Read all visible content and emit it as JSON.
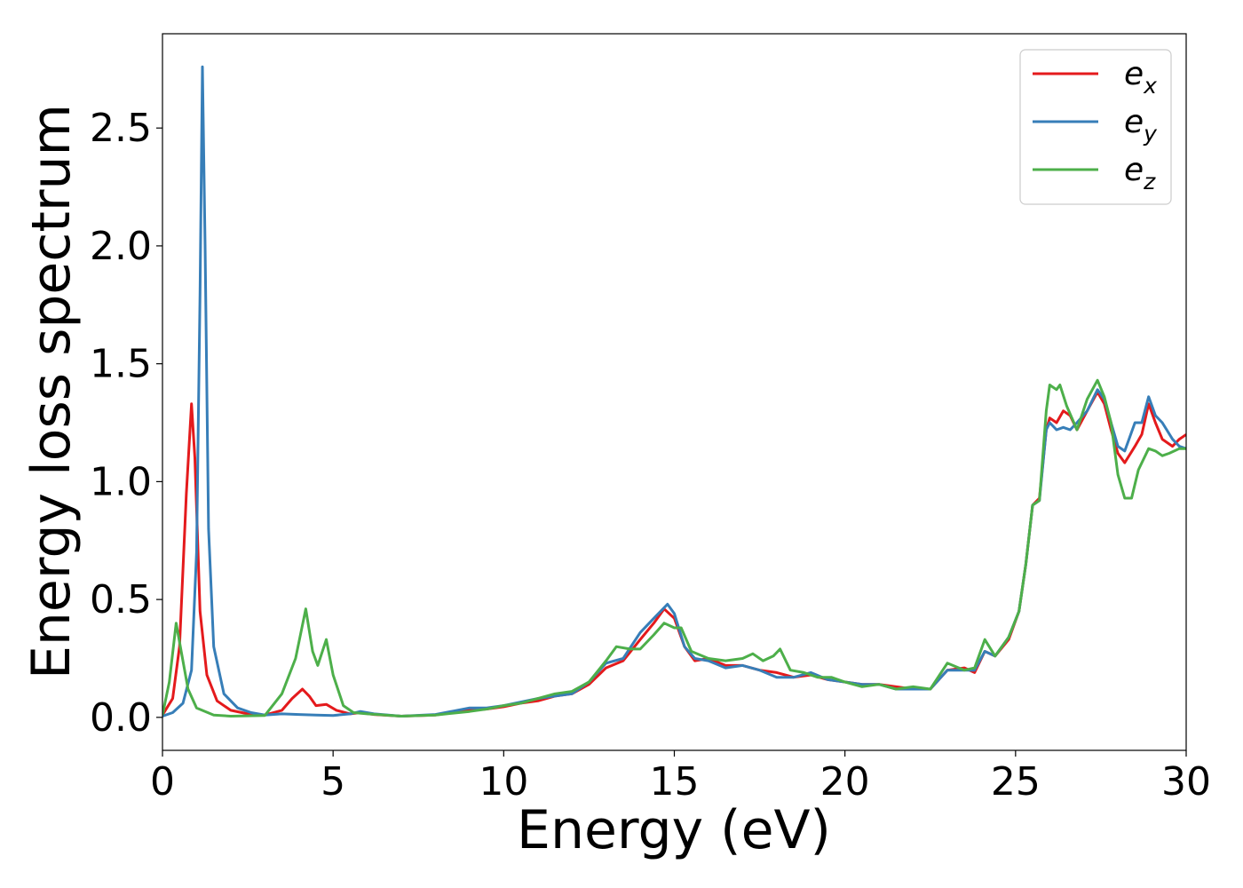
{
  "chart_data": {
    "type": "line",
    "xlabel": "Energy (eV)",
    "ylabel": "Energy loss spectrum",
    "xlim": [
      0,
      30
    ],
    "ylim": [
      -0.14,
      2.9
    ],
    "xticks": [
      0,
      5,
      10,
      15,
      20,
      25,
      30
    ],
    "xtick_labels": [
      "0",
      "5",
      "10",
      "15",
      "20",
      "25",
      "30"
    ],
    "yticks": [
      0.0,
      0.5,
      1.0,
      1.5,
      2.0,
      2.5
    ],
    "ytick_labels": [
      "0.0",
      "0.5",
      "1.0",
      "1.5",
      "2.0",
      "2.5"
    ],
    "grid": false,
    "legend_position": "top-right",
    "series": [
      {
        "name": "e",
        "subscript": "x",
        "color": "#e41a1c",
        "points": [
          [
            0,
            0.01
          ],
          [
            0.3,
            0.08
          ],
          [
            0.5,
            0.3
          ],
          [
            0.7,
            0.95
          ],
          [
            0.85,
            1.33
          ],
          [
            0.95,
            1.1
          ],
          [
            1.1,
            0.45
          ],
          [
            1.3,
            0.18
          ],
          [
            1.6,
            0.07
          ],
          [
            2.0,
            0.03
          ],
          [
            2.5,
            0.015
          ],
          [
            3.0,
            0.01
          ],
          [
            3.5,
            0.03
          ],
          [
            3.8,
            0.08
          ],
          [
            4.1,
            0.12
          ],
          [
            4.3,
            0.09
          ],
          [
            4.5,
            0.05
          ],
          [
            4.8,
            0.055
          ],
          [
            5.1,
            0.03
          ],
          [
            5.5,
            0.015
          ],
          [
            5.8,
            0.02
          ],
          [
            6.2,
            0.012
          ],
          [
            7.0,
            0.005
          ],
          [
            8.0,
            0.01
          ],
          [
            9.0,
            0.03
          ],
          [
            9.5,
            0.035
          ],
          [
            10.0,
            0.045
          ],
          [
            10.5,
            0.06
          ],
          [
            11.0,
            0.07
          ],
          [
            11.5,
            0.09
          ],
          [
            12.0,
            0.1
          ],
          [
            12.5,
            0.14
          ],
          [
            13.0,
            0.21
          ],
          [
            13.5,
            0.24
          ],
          [
            14.0,
            0.33
          ],
          [
            14.4,
            0.4
          ],
          [
            14.7,
            0.46
          ],
          [
            15.0,
            0.42
          ],
          [
            15.3,
            0.3
          ],
          [
            15.6,
            0.24
          ],
          [
            16.0,
            0.25
          ],
          [
            16.5,
            0.22
          ],
          [
            17.0,
            0.22
          ],
          [
            17.5,
            0.2
          ],
          [
            18.0,
            0.19
          ],
          [
            18.5,
            0.17
          ],
          [
            19.0,
            0.18
          ],
          [
            19.5,
            0.16
          ],
          [
            20.0,
            0.15
          ],
          [
            20.5,
            0.14
          ],
          [
            21.0,
            0.14
          ],
          [
            21.5,
            0.13
          ],
          [
            22.0,
            0.12
          ],
          [
            22.5,
            0.12
          ],
          [
            23.0,
            0.2
          ],
          [
            23.5,
            0.21
          ],
          [
            23.8,
            0.19
          ],
          [
            24.1,
            0.28
          ],
          [
            24.4,
            0.26
          ],
          [
            24.8,
            0.33
          ],
          [
            25.1,
            0.45
          ],
          [
            25.3,
            0.65
          ],
          [
            25.5,
            0.9
          ],
          [
            25.7,
            0.93
          ],
          [
            25.9,
            1.22
          ],
          [
            26.0,
            1.27
          ],
          [
            26.2,
            1.25
          ],
          [
            26.4,
            1.3
          ],
          [
            26.6,
            1.28
          ],
          [
            26.8,
            1.22
          ],
          [
            27.1,
            1.3
          ],
          [
            27.4,
            1.38
          ],
          [
            27.6,
            1.33
          ],
          [
            27.8,
            1.22
          ],
          [
            28.0,
            1.12
          ],
          [
            28.2,
            1.08
          ],
          [
            28.5,
            1.15
          ],
          [
            28.7,
            1.2
          ],
          [
            28.9,
            1.33
          ],
          [
            29.1,
            1.25
          ],
          [
            29.3,
            1.18
          ],
          [
            29.6,
            1.15
          ],
          [
            29.8,
            1.18
          ],
          [
            30.0,
            1.2
          ]
        ]
      },
      {
        "name": "e",
        "subscript": "y",
        "color": "#377eb8",
        "points": [
          [
            0,
            0.005
          ],
          [
            0.3,
            0.02
          ],
          [
            0.6,
            0.06
          ],
          [
            0.85,
            0.2
          ],
          [
            1.0,
            0.7
          ],
          [
            1.1,
            1.8
          ],
          [
            1.17,
            2.76
          ],
          [
            1.25,
            2.0
          ],
          [
            1.35,
            0.8
          ],
          [
            1.5,
            0.3
          ],
          [
            1.8,
            0.1
          ],
          [
            2.2,
            0.04
          ],
          [
            2.6,
            0.02
          ],
          [
            3.0,
            0.01
          ],
          [
            3.5,
            0.015
          ],
          [
            4.0,
            0.012
          ],
          [
            4.5,
            0.01
          ],
          [
            5.0,
            0.008
          ],
          [
            5.5,
            0.015
          ],
          [
            5.8,
            0.025
          ],
          [
            6.2,
            0.015
          ],
          [
            7.0,
            0.005
          ],
          [
            8.0,
            0.012
          ],
          [
            9.0,
            0.04
          ],
          [
            9.5,
            0.04
          ],
          [
            10.0,
            0.05
          ],
          [
            10.5,
            0.065
          ],
          [
            11.0,
            0.08
          ],
          [
            11.5,
            0.09
          ],
          [
            12.0,
            0.1
          ],
          [
            12.5,
            0.15
          ],
          [
            13.0,
            0.23
          ],
          [
            13.5,
            0.25
          ],
          [
            14.0,
            0.36
          ],
          [
            14.4,
            0.42
          ],
          [
            14.8,
            0.48
          ],
          [
            15.0,
            0.44
          ],
          [
            15.3,
            0.3
          ],
          [
            15.6,
            0.25
          ],
          [
            16.0,
            0.24
          ],
          [
            16.5,
            0.21
          ],
          [
            17.0,
            0.22
          ],
          [
            17.5,
            0.2
          ],
          [
            18.0,
            0.17
          ],
          [
            18.5,
            0.17
          ],
          [
            19.0,
            0.19
          ],
          [
            19.5,
            0.16
          ],
          [
            20.0,
            0.15
          ],
          [
            20.5,
            0.14
          ],
          [
            21.0,
            0.14
          ],
          [
            21.5,
            0.12
          ],
          [
            22.0,
            0.12
          ],
          [
            22.5,
            0.12
          ],
          [
            23.0,
            0.2
          ],
          [
            23.5,
            0.2
          ],
          [
            23.8,
            0.2
          ],
          [
            24.1,
            0.28
          ],
          [
            24.4,
            0.26
          ],
          [
            24.8,
            0.34
          ],
          [
            25.1,
            0.45
          ],
          [
            25.3,
            0.65
          ],
          [
            25.5,
            0.9
          ],
          [
            25.7,
            0.92
          ],
          [
            25.9,
            1.22
          ],
          [
            26.0,
            1.25
          ],
          [
            26.2,
            1.22
          ],
          [
            26.4,
            1.23
          ],
          [
            26.6,
            1.22
          ],
          [
            26.8,
            1.25
          ],
          [
            27.1,
            1.3
          ],
          [
            27.4,
            1.39
          ],
          [
            27.6,
            1.35
          ],
          [
            27.8,
            1.25
          ],
          [
            28.0,
            1.15
          ],
          [
            28.2,
            1.13
          ],
          [
            28.5,
            1.25
          ],
          [
            28.7,
            1.25
          ],
          [
            28.9,
            1.36
          ],
          [
            29.1,
            1.28
          ],
          [
            29.3,
            1.25
          ],
          [
            29.6,
            1.18
          ],
          [
            29.8,
            1.15
          ],
          [
            30.0,
            1.14
          ]
        ]
      },
      {
        "name": "e",
        "subscript": "z",
        "color": "#4daf4a",
        "points": [
          [
            0,
            0.01
          ],
          [
            0.2,
            0.15
          ],
          [
            0.4,
            0.4
          ],
          [
            0.55,
            0.28
          ],
          [
            0.75,
            0.12
          ],
          [
            1.0,
            0.04
          ],
          [
            1.5,
            0.01
          ],
          [
            2.0,
            0.005
          ],
          [
            3.0,
            0.008
          ],
          [
            3.5,
            0.1
          ],
          [
            3.9,
            0.25
          ],
          [
            4.2,
            0.46
          ],
          [
            4.4,
            0.28
          ],
          [
            4.55,
            0.22
          ],
          [
            4.8,
            0.33
          ],
          [
            5.0,
            0.18
          ],
          [
            5.3,
            0.05
          ],
          [
            5.6,
            0.02
          ],
          [
            6.0,
            0.015
          ],
          [
            7.0,
            0.005
          ],
          [
            8.0,
            0.01
          ],
          [
            9.0,
            0.025
          ],
          [
            9.5,
            0.035
          ],
          [
            10.0,
            0.05
          ],
          [
            10.5,
            0.06
          ],
          [
            11.0,
            0.08
          ],
          [
            11.5,
            0.1
          ],
          [
            12.0,
            0.11
          ],
          [
            12.5,
            0.15
          ],
          [
            13.0,
            0.24
          ],
          [
            13.3,
            0.3
          ],
          [
            13.7,
            0.29
          ],
          [
            14.0,
            0.29
          ],
          [
            14.4,
            0.35
          ],
          [
            14.7,
            0.4
          ],
          [
            15.0,
            0.38
          ],
          [
            15.2,
            0.38
          ],
          [
            15.5,
            0.28
          ],
          [
            16.0,
            0.25
          ],
          [
            16.5,
            0.24
          ],
          [
            17.0,
            0.25
          ],
          [
            17.3,
            0.27
          ],
          [
            17.6,
            0.24
          ],
          [
            17.9,
            0.26
          ],
          [
            18.1,
            0.29
          ],
          [
            18.4,
            0.2
          ],
          [
            18.8,
            0.19
          ],
          [
            19.2,
            0.17
          ],
          [
            19.6,
            0.17
          ],
          [
            20.0,
            0.15
          ],
          [
            20.5,
            0.13
          ],
          [
            21.0,
            0.14
          ],
          [
            21.5,
            0.12
          ],
          [
            22.0,
            0.13
          ],
          [
            22.5,
            0.12
          ],
          [
            23.0,
            0.23
          ],
          [
            23.5,
            0.2
          ],
          [
            23.8,
            0.21
          ],
          [
            24.1,
            0.33
          ],
          [
            24.4,
            0.26
          ],
          [
            24.8,
            0.34
          ],
          [
            25.1,
            0.45
          ],
          [
            25.3,
            0.65
          ],
          [
            25.5,
            0.9
          ],
          [
            25.7,
            0.92
          ],
          [
            25.9,
            1.3
          ],
          [
            26.0,
            1.41
          ],
          [
            26.2,
            1.39
          ],
          [
            26.3,
            1.41
          ],
          [
            26.5,
            1.32
          ],
          [
            26.8,
            1.22
          ],
          [
            27.1,
            1.35
          ],
          [
            27.4,
            1.43
          ],
          [
            27.6,
            1.36
          ],
          [
            27.8,
            1.25
          ],
          [
            28.0,
            1.03
          ],
          [
            28.2,
            0.93
          ],
          [
            28.4,
            0.93
          ],
          [
            28.6,
            1.05
          ],
          [
            28.9,
            1.14
          ],
          [
            29.1,
            1.13
          ],
          [
            29.3,
            1.11
          ],
          [
            29.5,
            1.12
          ],
          [
            29.8,
            1.14
          ],
          [
            30.0,
            1.14
          ]
        ]
      }
    ]
  }
}
